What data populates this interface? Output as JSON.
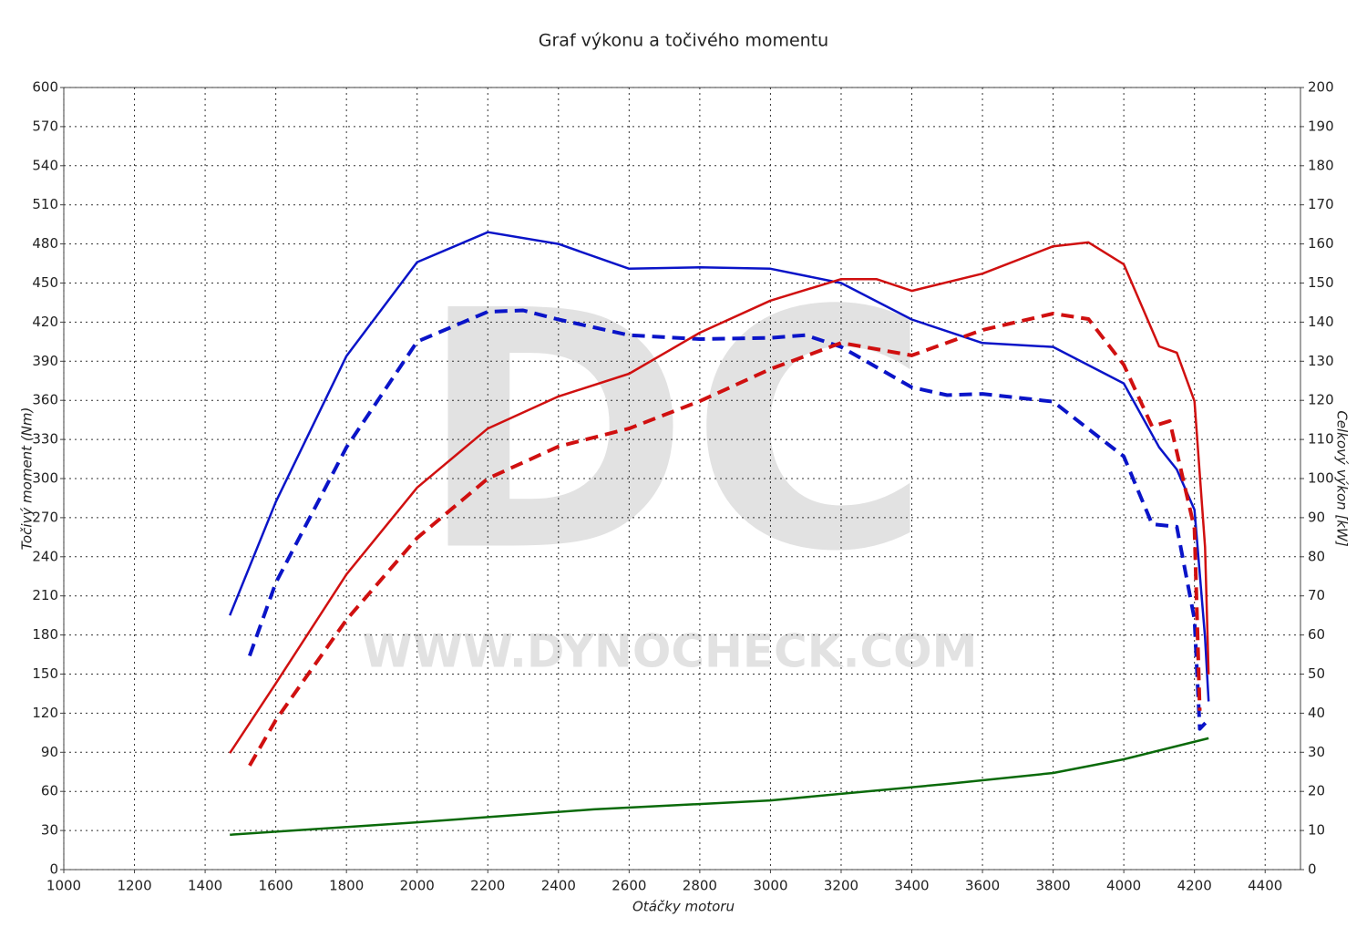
{
  "chart_data": {
    "type": "line",
    "title": "Graf výkonu a točivého momentu",
    "xlabel": "Otáčky motoru",
    "ylabel": "Točivý moment (Nm)",
    "y2label": "Celkový výkon [kW]",
    "watermark": [
      "DC",
      "WWW.DYNOCHECK.COM"
    ],
    "xlim": [
      1000,
      4500
    ],
    "xticks": [
      1000,
      1200,
      1400,
      1600,
      1800,
      2000,
      2200,
      2400,
      2600,
      2800,
      3000,
      3200,
      3400,
      3600,
      3800,
      4000,
      4200,
      4400
    ],
    "ylim": [
      0,
      600
    ],
    "yticks": [
      0,
      30,
      60,
      90,
      120,
      150,
      180,
      210,
      240,
      270,
      300,
      330,
      360,
      390,
      420,
      450,
      480,
      510,
      540,
      570,
      600
    ],
    "y2lim": [
      0,
      200
    ],
    "y2ticks": [
      0,
      10,
      20,
      30,
      40,
      50,
      60,
      70,
      80,
      90,
      100,
      110,
      120,
      130,
      140,
      150,
      160,
      170,
      180,
      190,
      200
    ],
    "grid": true,
    "series": [
      {
        "color": "#0a14c8",
        "dash": false,
        "axis": "y",
        "x": [
          1470,
          1600,
          1800,
          2000,
          2200,
          2400,
          2600,
          2800,
          3000,
          3200,
          3400,
          3600,
          3800,
          4000,
          4100,
          4150,
          4200,
          4230,
          4240
        ],
        "values": [
          195,
          282,
          394,
          466,
          489,
          480,
          461,
          462,
          461,
          450,
          422,
          404,
          401,
          373,
          324,
          307,
          276,
          178,
          129
        ]
      },
      {
        "color": "#0a14c8",
        "dash": true,
        "axis": "y",
        "x": [
          1526,
          1600,
          1800,
          2000,
          2200,
          2300,
          2400,
          2600,
          2800,
          3000,
          3100,
          3200,
          3400,
          3500,
          3600,
          3800,
          4000,
          4080,
          4150,
          4200,
          4215,
          4240
        ],
        "values": [
          164,
          220,
          324,
          405,
          428,
          429,
          422,
          410,
          407,
          408,
          410,
          401,
          370,
          364,
          365,
          359,
          317,
          265,
          263,
          192,
          108,
          115
        ]
      },
      {
        "color": "#d01010",
        "dash": false,
        "axis": "y2",
        "x": [
          1470,
          1600,
          1800,
          2000,
          2200,
          2400,
          2600,
          2800,
          3000,
          3200,
          3300,
          3400,
          3600,
          3800,
          3900,
          4000,
          4100,
          4150,
          4200,
          4230,
          4240
        ],
        "values": [
          29.8,
          47.6,
          75.5,
          97.7,
          112.8,
          121,
          126.8,
          137.3,
          145.5,
          151,
          151,
          148,
          152.4,
          159.4,
          160.4,
          154.8,
          133.8,
          132.2,
          119.8,
          82.5,
          49.9
        ]
      },
      {
        "color": "#d01010",
        "dash": true,
        "axis": "y2",
        "x": [
          1526,
          1600,
          1800,
          2000,
          2200,
          2400,
          2600,
          2800,
          3000,
          3200,
          3400,
          3600,
          3800,
          3900,
          4000,
          4080,
          4130,
          4200,
          4215
        ],
        "values": [
          26.6,
          38.2,
          63.9,
          84.8,
          100,
          108.2,
          112.8,
          119.8,
          128,
          134.7,
          131.5,
          138,
          142.2,
          140.8,
          129.1,
          113.3,
          114.7,
          87.2,
          40.6
        ]
      },
      {
        "color": "#0a6a0a",
        "dash": false,
        "axis": "y2",
        "x": [
          1470,
          2000,
          2500,
          3000,
          3500,
          3800,
          4000,
          4240
        ],
        "values": [
          8.9,
          12.1,
          15.4,
          17.7,
          21.9,
          24.7,
          28.2,
          33.6
        ]
      }
    ]
  }
}
